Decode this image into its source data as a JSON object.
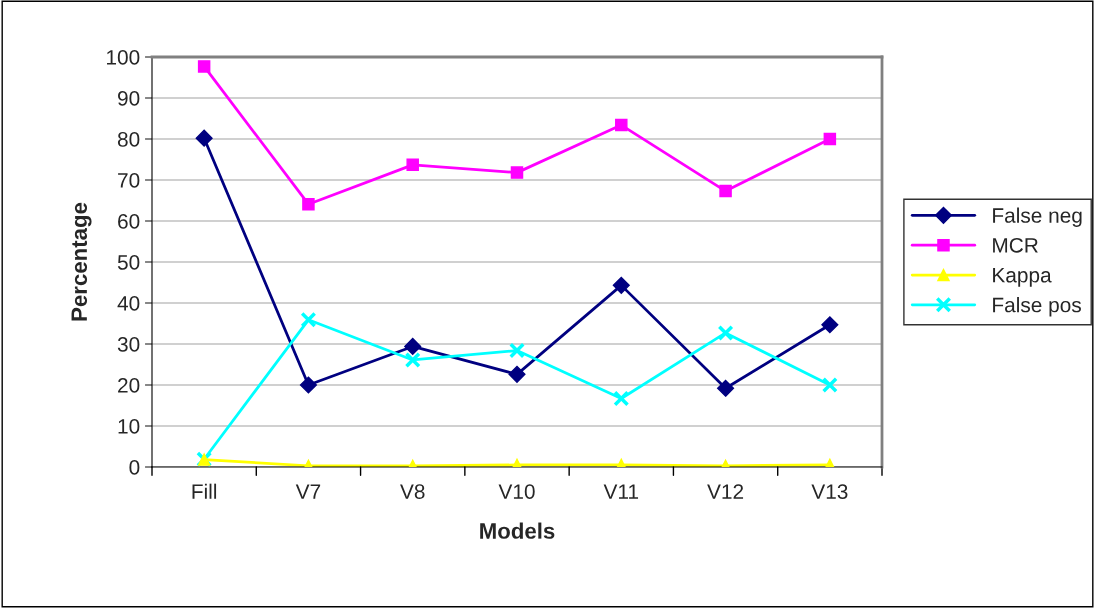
{
  "chart_data": {
    "type": "line",
    "xlabel": "Models",
    "ylabel": "Percentage",
    "categories": [
      "Fill",
      "V7",
      "V8",
      "V10",
      "V11",
      "V12",
      "V13"
    ],
    "series": [
      {
        "name": "False neg",
        "color": "#000080",
        "marker": "diamond",
        "values": [
          80.2,
          20,
          29.4,
          22.6,
          44.3,
          19.2,
          34.7
        ]
      },
      {
        "name": "MCR",
        "color": "#ff00ff",
        "marker": "square",
        "values": [
          97.7,
          64.1,
          73.7,
          71.8,
          83.4,
          67.3,
          80
        ]
      },
      {
        "name": "Kappa",
        "color": "#ffff00",
        "marker": "triangle",
        "values": [
          1.8,
          0.3,
          0.3,
          0.5,
          0.5,
          0.3,
          0.5
        ]
      },
      {
        "name": "False pos",
        "color": "#00ffff",
        "marker": "cross",
        "values": [
          1.9,
          35.9,
          26.1,
          28.4,
          16.7,
          32.7,
          20
        ]
      }
    ],
    "ylim": [
      0,
      100
    ],
    "yticks": [
      0,
      10,
      20,
      30,
      40,
      50,
      60,
      70,
      80,
      90,
      100
    ],
    "grid": "y",
    "legend": "right"
  }
}
